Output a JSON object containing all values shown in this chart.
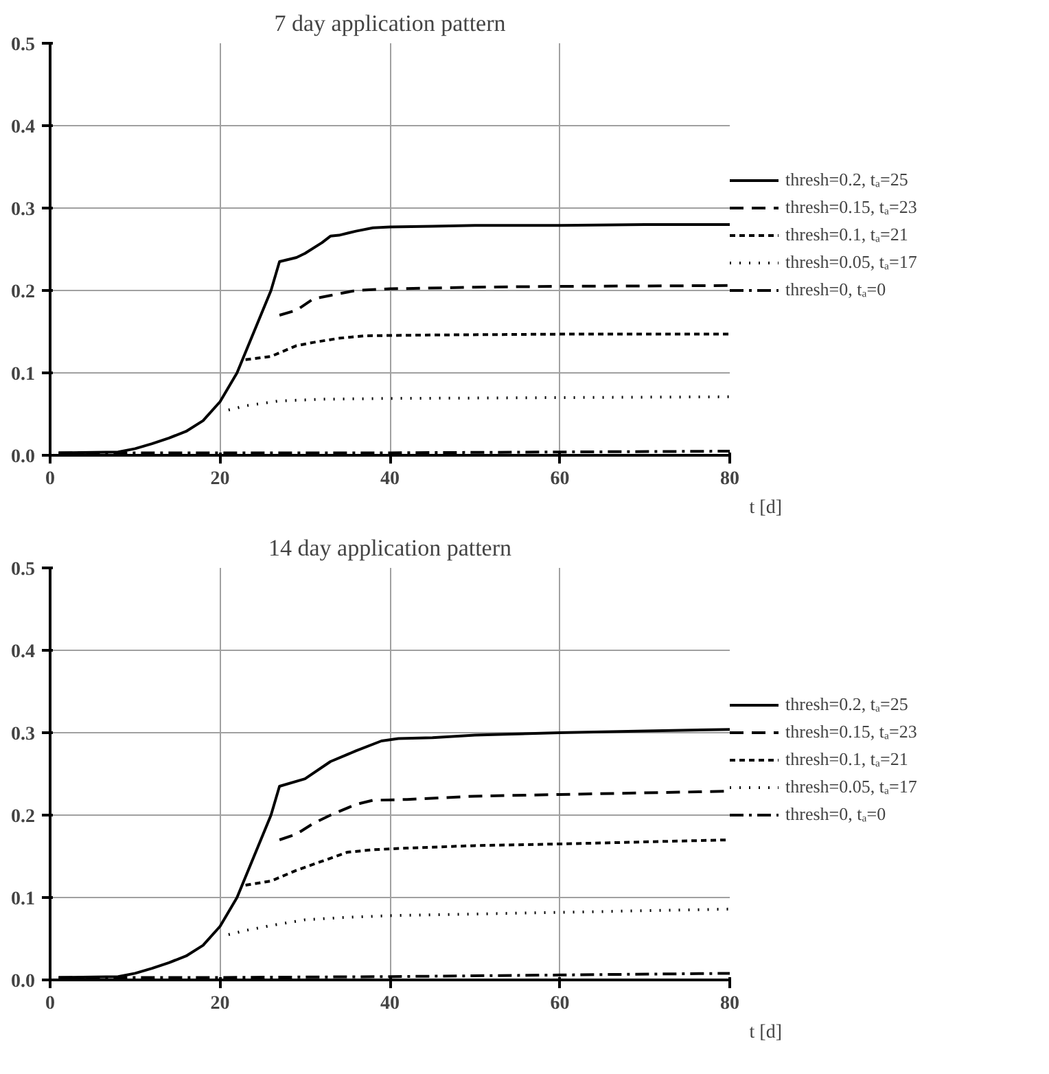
{
  "chart_data": [
    {
      "type": "line",
      "title": "7 day application pattern",
      "xlabel": "t [d]",
      "xlim": [
        0,
        80
      ],
      "ylim": [
        0,
        0.5
      ],
      "xticks": [
        0,
        20,
        40,
        60,
        80
      ],
      "yticks": [
        {
          "value": 0,
          "label": "0.0"
        },
        0.1,
        0.2,
        0.3,
        0.4,
        0.5
      ],
      "grid": true,
      "legend": "right",
      "series": [
        {
          "name": "thresh=0.2, tₐ=25",
          "color": "#000000",
          "line_style": "solid",
          "x": [
            1,
            8,
            10,
            12,
            14,
            16,
            18,
            20,
            22,
            24,
            26,
            27,
            29,
            30,
            32,
            33,
            34,
            36,
            38,
            40,
            45,
            50,
            60,
            70,
            80
          ],
          "values": [
            0.003,
            0.004,
            0.008,
            0.014,
            0.021,
            0.029,
            0.042,
            0.065,
            0.1,
            0.15,
            0.2,
            0.235,
            0.24,
            0.245,
            0.258,
            0.266,
            0.267,
            0.272,
            0.276,
            0.277,
            0.278,
            0.279,
            0.279,
            0.28,
            0.28
          ]
        },
        {
          "name": "thresh=0.15, tₐ=23",
          "color": "#000000",
          "line_style": "dashed",
          "x": [
            27,
            29,
            31,
            33,
            36,
            40,
            50,
            60,
            80
          ],
          "values": [
            0.17,
            0.176,
            0.19,
            0.194,
            0.2,
            0.202,
            0.204,
            0.205,
            0.206
          ]
        },
        {
          "name": "thresh=0.1, tₐ=21",
          "color": "#000000",
          "line_style": "shortdash",
          "x": [
            23,
            26,
            29,
            31,
            34,
            37,
            45,
            60,
            80
          ],
          "values": [
            0.116,
            0.12,
            0.133,
            0.137,
            0.142,
            0.145,
            0.146,
            0.147,
            0.147
          ]
        },
        {
          "name": "thresh=0.05, tₐ=17",
          "color": "#000000",
          "line_style": "dotted",
          "x": [
            21,
            23,
            27,
            32,
            40,
            60,
            80
          ],
          "values": [
            0.055,
            0.06,
            0.066,
            0.068,
            0.069,
            0.07,
            0.071
          ]
        },
        {
          "name": "thresh=0, tₐ=0",
          "color": "#000000",
          "line_style": "dashdot",
          "x": [
            1,
            20,
            40,
            60,
            80
          ],
          "values": [
            0.003,
            0.003,
            0.003,
            0.004,
            0.005
          ]
        }
      ]
    },
    {
      "type": "line",
      "title": "14 day application pattern",
      "xlabel": "t [d]",
      "xlim": [
        0,
        80
      ],
      "ylim": [
        0,
        0.5
      ],
      "xticks": [
        0,
        20,
        40,
        60,
        80
      ],
      "yticks": [
        {
          "value": 0,
          "label": "0.0"
        },
        0.1,
        0.2,
        0.3,
        0.4,
        0.5
      ],
      "grid": true,
      "legend": "right",
      "series": [
        {
          "name": "thresh=0.2, tₐ=25",
          "color": "#000000",
          "line_style": "solid",
          "x": [
            1,
            8,
            10,
            12,
            14,
            16,
            18,
            20,
            22,
            24,
            26,
            27,
            30,
            33,
            36,
            39,
            41,
            45,
            50,
            60,
            70,
            80
          ],
          "values": [
            0.003,
            0.004,
            0.008,
            0.014,
            0.021,
            0.029,
            0.042,
            0.065,
            0.1,
            0.15,
            0.2,
            0.235,
            0.244,
            0.265,
            0.278,
            0.29,
            0.293,
            0.294,
            0.297,
            0.3,
            0.302,
            0.304
          ]
        },
        {
          "name": "thresh=0.15, tₐ=23",
          "color": "#000000",
          "line_style": "dashed",
          "x": [
            27,
            29,
            31,
            33,
            36,
            38,
            42,
            50,
            60,
            80
          ],
          "values": [
            0.17,
            0.177,
            0.19,
            0.2,
            0.213,
            0.218,
            0.219,
            0.223,
            0.225,
            0.229
          ]
        },
        {
          "name": "thresh=0.1, tₐ=21",
          "color": "#000000",
          "line_style": "shortdash",
          "x": [
            23,
            26,
            29,
            32,
            35,
            38,
            42,
            50,
            60,
            80
          ],
          "values": [
            0.115,
            0.12,
            0.133,
            0.144,
            0.155,
            0.158,
            0.16,
            0.163,
            0.165,
            0.17
          ]
        },
        {
          "name": "thresh=0.05, tₐ=17",
          "color": "#000000",
          "line_style": "dotted",
          "x": [
            21,
            23,
            26,
            30,
            35,
            40,
            50,
            60,
            80
          ],
          "values": [
            0.055,
            0.06,
            0.066,
            0.073,
            0.076,
            0.078,
            0.08,
            0.082,
            0.086
          ]
        },
        {
          "name": "thresh=0, tₐ=0",
          "color": "#000000",
          "line_style": "dashdot",
          "x": [
            1,
            20,
            40,
            60,
            80
          ],
          "values": [
            0.003,
            0.003,
            0.004,
            0.006,
            0.008
          ]
        }
      ]
    }
  ]
}
